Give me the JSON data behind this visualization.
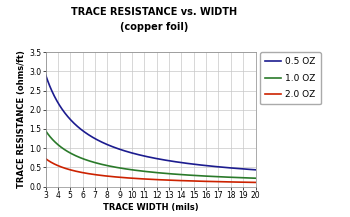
{
  "title_line1": "TRACE RESISTANCE vs. WIDTH",
  "title_line2": "(copper foil)",
  "xlabel": "TRACE WIDTH (mils)",
  "ylabel": "TRACE RESISTANCE (ohms/ft)",
  "xlim": [
    3,
    20
  ],
  "ylim": [
    0,
    3.5
  ],
  "xticks": [
    3,
    4,
    5,
    6,
    7,
    8,
    9,
    10,
    11,
    12,
    13,
    14,
    15,
    16,
    17,
    18,
    19,
    20
  ],
  "yticks": [
    0,
    0.5,
    1.0,
    1.5,
    2.0,
    2.5,
    3.0,
    3.5
  ],
  "series": [
    {
      "label": "0.5 OZ",
      "color": "#1c1c8f",
      "k": 8.75
    },
    {
      "label": "1.0 OZ",
      "color": "#2a7a2a",
      "k": 4.375
    },
    {
      "label": "2.0 OZ",
      "color": "#cc2200",
      "k": 2.1875
    }
  ],
  "background_color": "#ffffff",
  "grid_color": "#c8c8c8"
}
